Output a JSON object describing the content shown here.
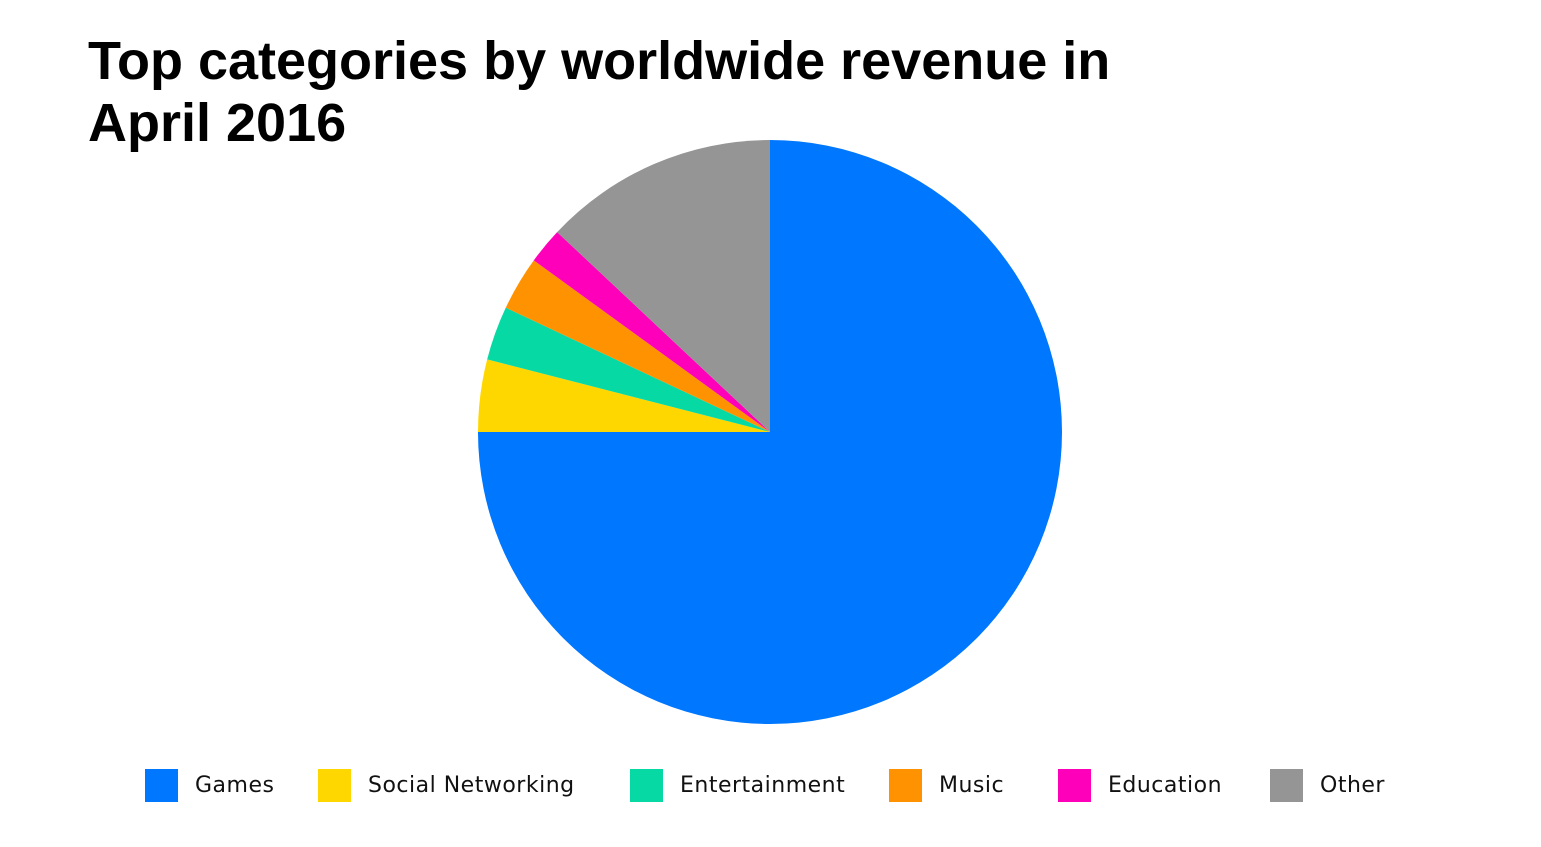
{
  "chart_data": {
    "type": "pie",
    "title": "Top categories by worldwide revenue in April 2016",
    "categories": [
      "Games",
      "Social Networking",
      "Entertainment",
      "Music",
      "Education",
      "Other"
    ],
    "values": [
      75,
      4,
      3,
      3,
      2,
      13
    ],
    "colors": [
      "#0077FF",
      "#FFD700",
      "#07D9A4",
      "#FF9200",
      "#FF00BA",
      "#959595"
    ],
    "start_angle_deg": 0,
    "direction": "clockwise",
    "legend_position": "bottom"
  }
}
